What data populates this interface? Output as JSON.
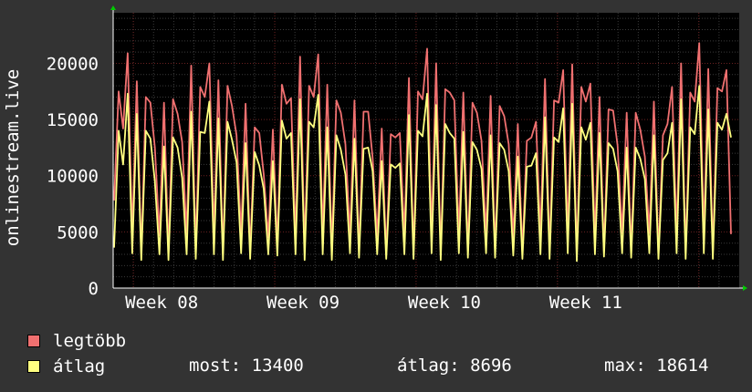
{
  "chart_data": {
    "type": "line",
    "ylabel": "onlinestream.live",
    "ylim": [
      0,
      24500
    ],
    "y_ticks": [
      0,
      5000,
      10000,
      15000,
      20000
    ],
    "x_ticks": [
      "Week 08",
      "Week 09",
      "Week 10",
      "Week 11"
    ],
    "x_unit": "day",
    "x_range_days": [
      0,
      31
    ],
    "x_week_label_days": [
      2.4,
      9.4,
      16.4,
      23.4
    ],
    "background_color": "#000000",
    "grid": true,
    "series": [
      {
        "name": "legtöbb",
        "color": "#f07070",
        "values": [
          7800,
          17500,
          14200,
          20900,
          4800,
          18400,
          3000,
          17000,
          16500,
          12500,
          4700,
          16500,
          3100,
          16800,
          15500,
          13000,
          4800,
          19800,
          3400,
          17900,
          17000,
          20000,
          4800,
          18500,
          3000,
          18000,
          16200,
          13600,
          4800,
          16400,
          3200,
          14300,
          13800,
          10100,
          4500,
          14100,
          3700,
          18100,
          16400,
          16900,
          4600,
          20600,
          3600,
          18000,
          17000,
          20800,
          4700,
          18100,
          3500,
          16700,
          15600,
          12800,
          4700,
          16700,
          3300,
          15700,
          15700,
          11600,
          4600,
          14200,
          3100,
          13700,
          13400,
          13800,
          4700,
          18700,
          3200,
          17500,
          16800,
          21300,
          4800,
          20000,
          3100,
          17700,
          17400,
          16700,
          4800,
          17400,
          3300,
          16500,
          15600,
          13100,
          4800,
          17100,
          3300,
          16200,
          15300,
          12800,
          4500,
          14600,
          3200,
          13100,
          13400,
          14800,
          4800,
          18600,
          3300,
          16700,
          16500,
          19400,
          4800,
          19900,
          3000,
          17900,
          16600,
          18200,
          4500,
          17000,
          3300,
          15900,
          15800,
          12700,
          4900,
          15600,
          3300,
          15600,
          14100,
          11700,
          4900,
          16600,
          3100,
          13600,
          14600,
          17900,
          4900,
          20000,
          3200,
          17400,
          16600,
          21800,
          4800,
          19500,
          3200,
          17800,
          17500,
          19400,
          4800
        ]
      },
      {
        "name": "átlag",
        "color": "#ffff80",
        "values": [
          3600,
          14000,
          11000,
          17300,
          3100,
          15500,
          2500,
          14000,
          13300,
          9500,
          3000,
          12600,
          2500,
          13400,
          12500,
          9800,
          3000,
          15700,
          2600,
          13900,
          13800,
          16600,
          3000,
          15100,
          2500,
          14800,
          13200,
          11200,
          3100,
          12900,
          2600,
          12100,
          10900,
          8800,
          3000,
          11300,
          2900,
          14900,
          13300,
          13800,
          3000,
          16800,
          2500,
          14800,
          14300,
          17200,
          3000,
          14300,
          2500,
          13600,
          12300,
          10100,
          3100,
          13300,
          2700,
          12400,
          12500,
          10400,
          3000,
          11300,
          2600,
          11000,
          10700,
          11100,
          3000,
          15400,
          2600,
          14000,
          13500,
          17300,
          3100,
          16300,
          2500,
          14600,
          13800,
          13300,
          3100,
          13900,
          2700,
          13000,
          12300,
          10600,
          3100,
          13600,
          2700,
          12900,
          12300,
          10400,
          2900,
          11700,
          2600,
          10800,
          10900,
          12000,
          3000,
          15200,
          2600,
          13400,
          13000,
          16000,
          3100,
          16400,
          2400,
          14300,
          13200,
          14700,
          3000,
          13800,
          2800,
          12900,
          12400,
          10400,
          3100,
          12500,
          2700,
          12500,
          11500,
          9700,
          3100,
          13600,
          2600,
          11400,
          12000,
          14700,
          3100,
          16800,
          2600,
          14300,
          13700,
          18000,
          3100,
          15900,
          2600,
          14700,
          14100,
          15500,
          13400
        ]
      }
    ]
  },
  "legend": {
    "items": [
      {
        "label": "legtöbb",
        "color": "#f07070"
      },
      {
        "label": "átlag",
        "color": "#ffff80"
      }
    ],
    "stats": {
      "current": "most: 13400",
      "average": "átlag: 8696",
      "maximum": "max: 18614"
    }
  }
}
